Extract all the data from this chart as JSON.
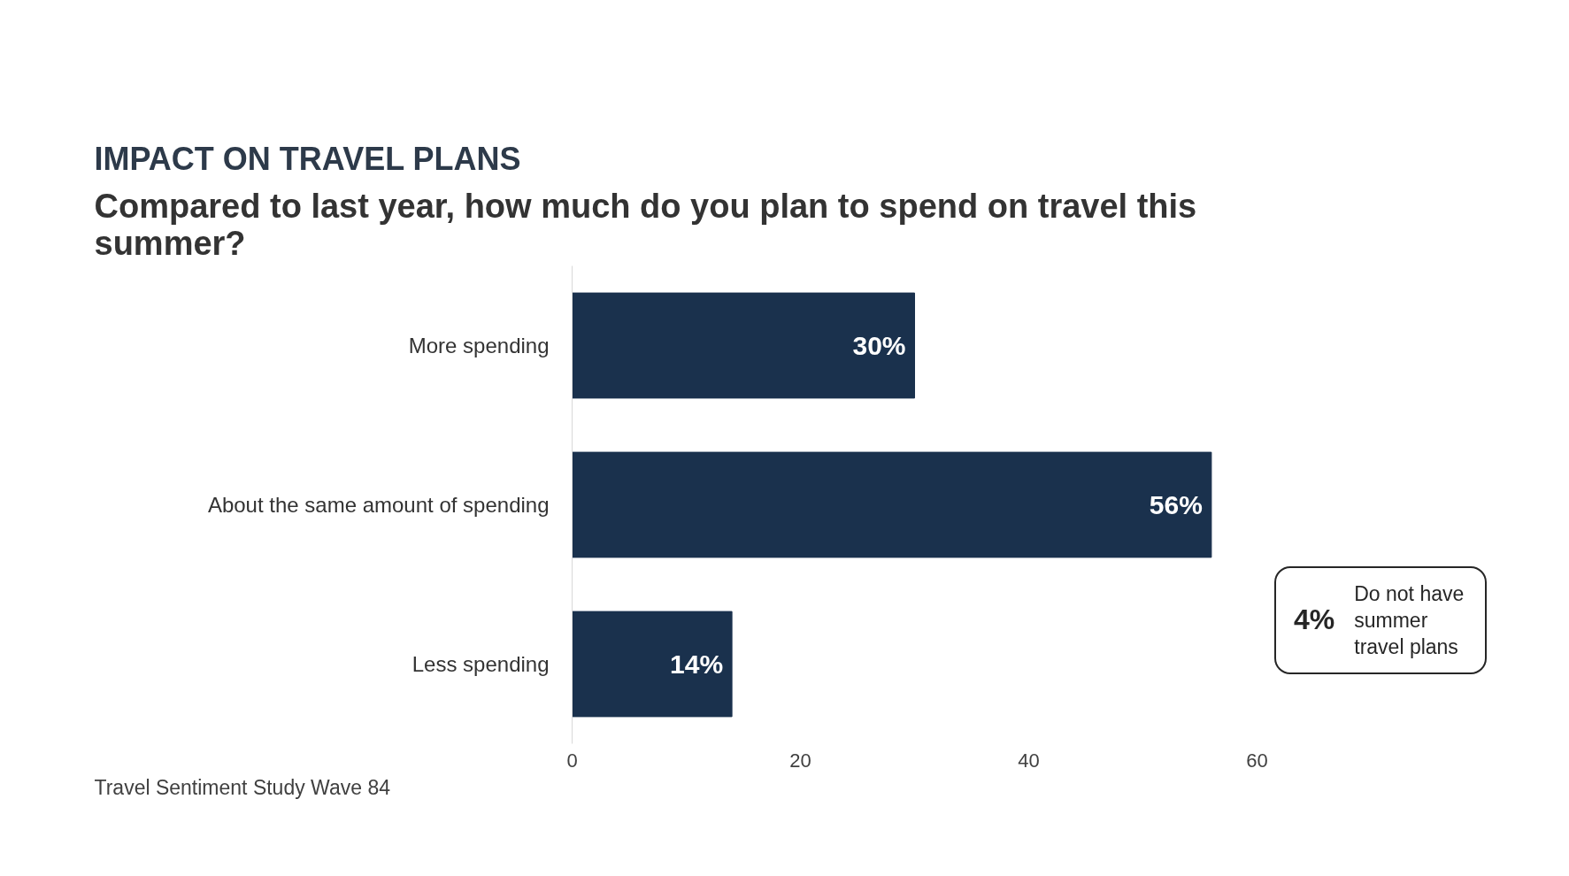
{
  "chart_data": {
    "type": "bar",
    "orientation": "horizontal",
    "title": "IMPACT ON TRAVEL PLANS",
    "subtitle": "Compared to last year, how much do you plan to spend on travel this\nsummer?",
    "categories": [
      "More spending",
      "About the same amount of spending",
      "Less spending"
    ],
    "values": [
      30,
      56,
      14
    ],
    "value_labels": [
      "30%",
      "56%",
      "14%"
    ],
    "color": "#1a314d",
    "xlim": [
      0,
      60
    ],
    "xticks": [
      0,
      20,
      40,
      60
    ],
    "grid": false,
    "annotations": [
      "4%  Do not have\n      summer travel\n      plans",
      "Travel Sentiment Study Wave 84"
    ]
  }
}
